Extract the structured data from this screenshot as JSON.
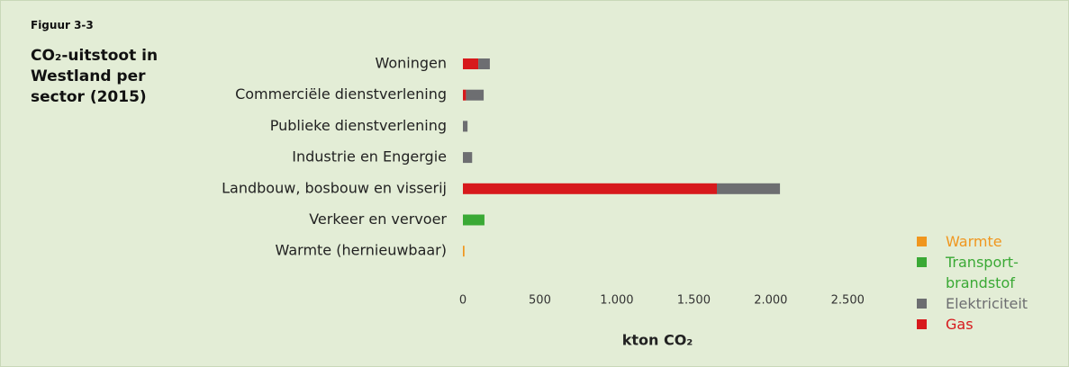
{
  "chart_data": {
    "type": "stacked_barh",
    "label": "Figuur 3-3",
    "title": "CO₂-uitstoot in Westland per sector (2015)",
    "x_label": "kton CO₂",
    "categories": [
      "Woningen",
      "Commerciële dienstverlening",
      "Publieke dienstverlening",
      "Industrie en Engergie",
      "Landbouw, bosbouw en visserij",
      "Verkeer en vervoer",
      "Warmte (hernieuwbaar)"
    ],
    "series": [
      {
        "name": "Warmte",
        "color": "#f0961e",
        "values": [
          0,
          0,
          0,
          0,
          0,
          0,
          10
        ]
      },
      {
        "name": "Transport-brandstof",
        "color": "#3aa935",
        "values": [
          0,
          0,
          0,
          0,
          0,
          140,
          0
        ]
      },
      {
        "name": "Elektriciteit",
        "color": "#6d6e71",
        "values": [
          75,
          115,
          30,
          60,
          410,
          0,
          0
        ]
      },
      {
        "name": "Gas",
        "color": "#d7191c",
        "values": [
          100,
          20,
          0,
          0,
          1650,
          0,
          0
        ]
      }
    ],
    "stack_order": [
      "Gas",
      "Elektriciteit",
      "Transport-brandstof",
      "Warmte"
    ],
    "xlim": [
      0,
      2750
    ],
    "xticks": [
      0,
      500,
      {
        "value": 1000,
        "label": "1.000"
      },
      {
        "value": 1500,
        "label": "1.500"
      },
      {
        "value": 2000,
        "label": "2.000"
      },
      {
        "value": 2500,
        "label": "2.500"
      }
    ],
    "grid": false
  }
}
